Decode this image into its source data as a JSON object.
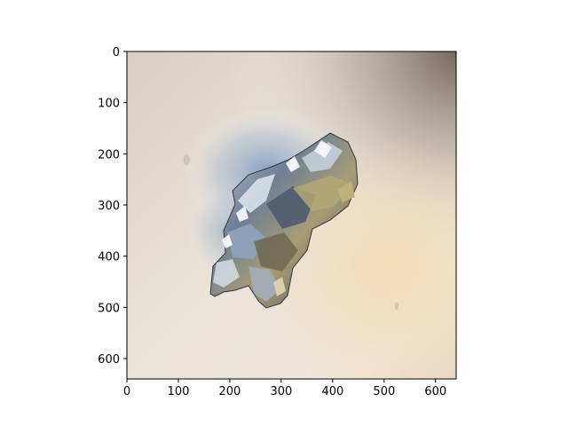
{
  "image": {
    "subject": "",
    "colors": {
      "background_light": "#efe8de",
      "background_mid": "#ddd4c8",
      "background_shadow": "#8a7a6d",
      "foil_dark": "#3c4a5d",
      "foil_mid": "#8295ad",
      "foil_light": "#d8dee6",
      "foil_warm": "#a89a6a",
      "shadow_blue": "#7f9ec0"
    }
  },
  "axes": {
    "x_ticks": [
      "0",
      "100",
      "200",
      "300",
      "400",
      "500",
      "600"
    ],
    "y_ticks": [
      "0",
      "100",
      "200",
      "300",
      "400",
      "500",
      "600"
    ],
    "xlim": [
      0,
      640
    ],
    "ylim": [
      640,
      0
    ]
  }
}
